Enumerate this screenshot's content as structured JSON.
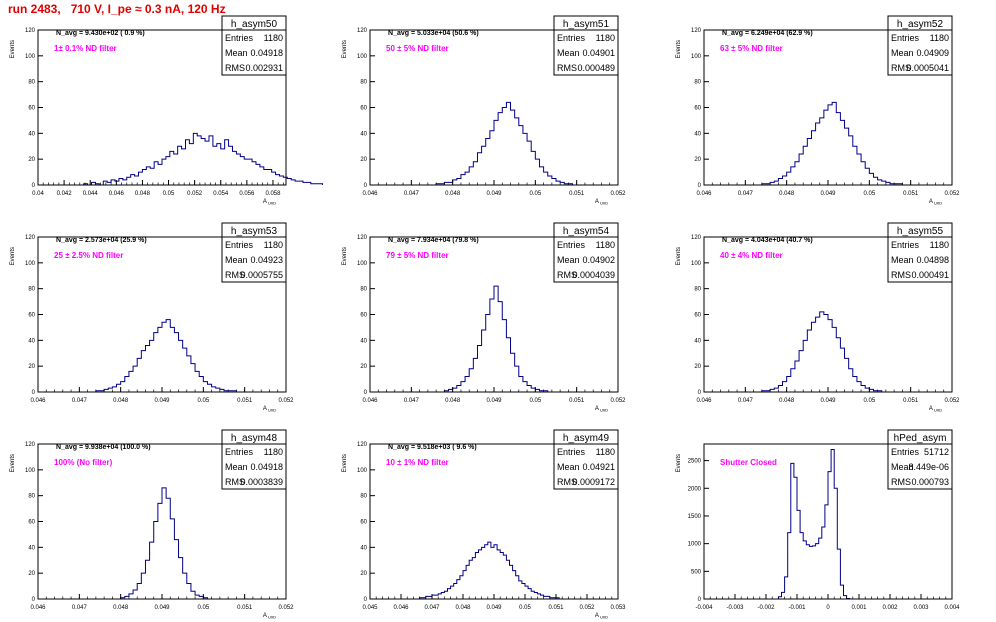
{
  "page_title": "run 2483,   710 V, I_pe ≈ 0.3 nA, 120 Hz",
  "colors": {
    "title": "#e00000",
    "hist": "#00008b",
    "filter": "#ff00ff",
    "frame": "#000000"
  },
  "chart_data": [
    {
      "type": "histogram",
      "name": "h_asym50",
      "title": "h_asym50",
      "navg": "N_avg = 9.430e+02 ( 0.9 %)",
      "filter_label": "1± 0.1% ND filter",
      "stats": [
        [
          "Entries",
          "1180"
        ],
        [
          "Mean",
          "0.04918"
        ],
        [
          "RMS",
          "0.002931"
        ]
      ],
      "ylabel": "Events",
      "xlabel": "A",
      "xlim": [
        0.04,
        0.059
      ],
      "ylim": [
        0,
        120
      ],
      "xticks": [
        0.04,
        0.042,
        0.044,
        0.046,
        0.048,
        0.05,
        0.052,
        0.054,
        0.056,
        0.058
      ],
      "xticklabels": [
        "0.04",
        "0.042",
        "0.044",
        "0.046",
        "0.048",
        "0.05",
        "0.052",
        "0.054",
        "0.056",
        "0.058"
      ],
      "yticks": [
        0,
        20,
        40,
        60,
        80,
        100,
        120
      ],
      "bins": {
        "start": 0.0435,
        "width": 0.0003,
        "counts": [
          1,
          0,
          2,
          1,
          0,
          3,
          2,
          4,
          3,
          5,
          4,
          6,
          8,
          7,
          10,
          12,
          14,
          13,
          18,
          16,
          20,
          22,
          26,
          24,
          30,
          28,
          35,
          32,
          40,
          38,
          36,
          34,
          38,
          30,
          32,
          28,
          35,
          30,
          26,
          24,
          22,
          20,
          20,
          18,
          16,
          14,
          12,
          12,
          10,
          8,
          7,
          6,
          5,
          4,
          3,
          3,
          2,
          2,
          1,
          1,
          1
        ]
      }
    },
    {
      "type": "histogram",
      "name": "h_asym51",
      "title": "h_asym51",
      "navg": "N_avg = 5.033e+04 (50.6 %)",
      "filter_label": "50 ± 5% ND filter",
      "stats": [
        [
          "Entries",
          "1180"
        ],
        [
          "Mean",
          "0.04901"
        ],
        [
          "RMS",
          "0.000489"
        ]
      ],
      "ylabel": "Events",
      "xlabel": "A",
      "xlim": [
        0.046,
        0.052
      ],
      "ylim": [
        0,
        120
      ],
      "xticks": [
        0.046,
        0.047,
        0.048,
        0.049,
        0.05,
        0.051,
        0.052
      ],
      "xticklabels": [
        "0.046",
        "0.047",
        "0.048",
        "0.049",
        "0.05",
        "0.051",
        "0.052"
      ],
      "yticks": [
        0,
        20,
        40,
        60,
        80,
        100,
        120
      ],
      "bins": {
        "start": 0.0476,
        "width": 0.0001,
        "counts": [
          1,
          1,
          2,
          2,
          4,
          5,
          8,
          10,
          14,
          18,
          25,
          30,
          36,
          42,
          50,
          56,
          60,
          64,
          58,
          52,
          46,
          40,
          34,
          26,
          20,
          14,
          10,
          7,
          5,
          3,
          2,
          1,
          1
        ]
      }
    },
    {
      "type": "histogram",
      "name": "h_asym52",
      "title": "h_asym52",
      "navg": "N_avg = 6.249e+04 (62.9 %)",
      "filter_label": "63 ± 5% ND filter",
      "stats": [
        [
          "Entries",
          "1180"
        ],
        [
          "Mean",
          "0.04909"
        ],
        [
          "RMS",
          "0.0005041"
        ]
      ],
      "ylabel": "Events",
      "xlabel": "A",
      "xlim": [
        0.046,
        0.052
      ],
      "ylim": [
        0,
        120
      ],
      "xticks": [
        0.046,
        0.047,
        0.048,
        0.049,
        0.05,
        0.051,
        0.052
      ],
      "xticklabels": [
        "0.046",
        "0.047",
        "0.048",
        "0.049",
        "0.05",
        "0.051",
        "0.052"
      ],
      "yticks": [
        0,
        20,
        40,
        60,
        80,
        100,
        120
      ],
      "bins": {
        "start": 0.0474,
        "width": 0.0001,
        "counts": [
          1,
          1,
          2,
          3,
          5,
          7,
          10,
          14,
          18,
          24,
          30,
          36,
          42,
          48,
          52,
          58,
          62,
          64,
          56,
          50,
          44,
          38,
          30,
          24,
          18,
          13,
          9,
          6,
          4,
          3,
          2,
          1,
          1,
          1
        ]
      }
    },
    {
      "type": "histogram",
      "name": "h_asym53",
      "title": "h_asym53",
      "navg": "N_avg = 2.573e+04 (25.9 %)",
      "filter_label": "25 ± 2.5% ND filter",
      "stats": [
        [
          "Entries",
          "1180"
        ],
        [
          "Mean",
          "0.04923"
        ],
        [
          "RMS",
          "0.0005755"
        ]
      ],
      "ylabel": "Events",
      "xlabel": "A",
      "xlim": [
        0.046,
        0.052
      ],
      "ylim": [
        0,
        120
      ],
      "xticks": [
        0.046,
        0.047,
        0.048,
        0.049,
        0.05,
        0.051,
        0.052
      ],
      "xticklabels": [
        "0.046",
        "0.047",
        "0.048",
        "0.049",
        "0.05",
        "0.051",
        "0.052"
      ],
      "yticks": [
        0,
        20,
        40,
        60,
        80,
        100,
        120
      ],
      "bins": {
        "start": 0.0474,
        "width": 0.0001,
        "counts": [
          1,
          1,
          2,
          3,
          4,
          6,
          8,
          12,
          16,
          20,
          26,
          32,
          36,
          40,
          46,
          50,
          54,
          56,
          50,
          46,
          40,
          34,
          28,
          22,
          16,
          12,
          8,
          6,
          4,
          3,
          2,
          1,
          1,
          1
        ]
      }
    },
    {
      "type": "histogram",
      "name": "h_asym54",
      "title": "h_asym54",
      "navg": "N_avg = 7.934e+04 (79.8 %)",
      "filter_label": "79 ± 5% ND filter",
      "stats": [
        [
          "Entries",
          "1180"
        ],
        [
          "Mean",
          "0.04902"
        ],
        [
          "RMS",
          "0.0004039"
        ]
      ],
      "ylabel": "Events",
      "xlabel": "A",
      "xlim": [
        0.046,
        0.052
      ],
      "ylim": [
        0,
        120
      ],
      "xticks": [
        0.046,
        0.047,
        0.048,
        0.049,
        0.05,
        0.051,
        0.052
      ],
      "xticklabels": [
        "0.046",
        "0.047",
        "0.048",
        "0.049",
        "0.05",
        "0.051",
        "0.052"
      ],
      "yticks": [
        0,
        20,
        40,
        60,
        80,
        100,
        120
      ],
      "bins": {
        "start": 0.0478,
        "width": 0.0001,
        "counts": [
          1,
          2,
          3,
          5,
          8,
          12,
          18,
          26,
          36,
          48,
          60,
          72,
          82,
          70,
          56,
          42,
          30,
          20,
          12,
          8,
          5,
          3,
          2,
          1,
          1
        ]
      }
    },
    {
      "type": "histogram",
      "name": "h_asym55",
      "title": "h_asym55",
      "navg": "N_avg = 4.043e+04 (40.7 %)",
      "filter_label": "40 ± 4% ND filter",
      "stats": [
        [
          "Entries",
          "1180"
        ],
        [
          "Mean",
          "0.04898"
        ],
        [
          "RMS",
          "0.000491"
        ]
      ],
      "ylabel": "Events",
      "xlabel": "A",
      "xlim": [
        0.046,
        0.052
      ],
      "ylim": [
        0,
        120
      ],
      "xticks": [
        0.046,
        0.047,
        0.048,
        0.049,
        0.05,
        0.051,
        0.052
      ],
      "xticklabels": [
        "0.046",
        "0.047",
        "0.048",
        "0.049",
        "0.05",
        "0.051",
        "0.052"
      ],
      "yticks": [
        0,
        20,
        40,
        60,
        80,
        100,
        120
      ],
      "bins": {
        "start": 0.0474,
        "width": 0.0001,
        "counts": [
          1,
          1,
          2,
          3,
          5,
          8,
          12,
          18,
          24,
          32,
          40,
          48,
          54,
          58,
          62,
          60,
          56,
          50,
          42,
          34,
          26,
          18,
          12,
          8,
          5,
          3,
          2,
          1,
          1
        ]
      }
    },
    {
      "type": "histogram",
      "name": "h_asym48",
      "title": "h_asym48",
      "navg": "N_avg = 9.938e+04 (100.0 %)",
      "filter_label": "100% (No filter)",
      "stats": [
        [
          "Entries",
          "1180"
        ],
        [
          "Mean",
          "0.04918"
        ],
        [
          "RMS",
          "0.0003839"
        ]
      ],
      "ylabel": "Events",
      "xlabel": "A",
      "xlim": [
        0.046,
        0.052
      ],
      "ylim": [
        0,
        120
      ],
      "xticks": [
        0.046,
        0.047,
        0.048,
        0.049,
        0.05,
        0.051,
        0.052
      ],
      "xticklabels": [
        "0.046",
        "0.047",
        "0.048",
        "0.049",
        "0.05",
        "0.051",
        "0.052"
      ],
      "yticks": [
        0,
        20,
        40,
        60,
        80,
        100,
        120
      ],
      "bins": {
        "start": 0.048,
        "width": 0.0001,
        "counts": [
          1,
          2,
          4,
          7,
          12,
          20,
          30,
          44,
          60,
          74,
          86,
          78,
          62,
          46,
          32,
          20,
          12,
          6,
          3,
          2,
          1
        ]
      }
    },
    {
      "type": "histogram",
      "name": "h_asym49",
      "title": "h_asym49",
      "navg": "N_avg = 9.518e+03 ( 9.6 %)",
      "filter_label": "10 ± 1% ND filter",
      "stats": [
        [
          "Entries",
          "1180"
        ],
        [
          "Mean",
          "0.04921"
        ],
        [
          "RMS",
          "0.0009172"
        ]
      ],
      "ylabel": "Events",
      "xlabel": "A",
      "xlim": [
        0.045,
        0.053
      ],
      "ylim": [
        0,
        120
      ],
      "xticks": [
        0.045,
        0.046,
        0.047,
        0.048,
        0.049,
        0.05,
        0.051,
        0.052,
        0.053
      ],
      "xticklabels": [
        "0.045",
        "0.046",
        "0.047",
        "0.048",
        "0.049",
        "0.05",
        "0.051",
        "0.052",
        "0.053"
      ],
      "yticks": [
        0,
        20,
        40,
        60,
        80,
        100,
        120
      ],
      "bins": {
        "start": 0.0466,
        "width": 0.0001,
        "counts": [
          1,
          1,
          2,
          2,
          3,
          3,
          4,
          5,
          6,
          8,
          10,
          12,
          15,
          18,
          22,
          26,
          30,
          32,
          36,
          38,
          40,
          42,
          44,
          40,
          42,
          38,
          36,
          34,
          30,
          26,
          22,
          18,
          14,
          12,
          10,
          8,
          6,
          5,
          4,
          3,
          2,
          2,
          1,
          1,
          1
        ]
      }
    },
    {
      "type": "histogram",
      "name": "hPed_asym",
      "title": "hPed_asym",
      "navg": "",
      "filter_label": "Shutter Closed",
      "stats": [
        [
          "Entries",
          "51712"
        ],
        [
          "Mean",
          "8.449e-06"
        ],
        [
          "RMS",
          "0.000793"
        ]
      ],
      "ylabel": "Events",
      "xlabel": "",
      "xlim": [
        -0.004,
        0.004
      ],
      "ylim": [
        0,
        2800
      ],
      "xticks": [
        -0.004,
        -0.003,
        -0.002,
        -0.001,
        0,
        0.001,
        0.002,
        0.003,
        0.004
      ],
      "xticklabels": [
        "-0.004",
        "-0.003",
        "-0.002",
        "-0.001",
        "0",
        "0.001",
        "0.002",
        "0.003",
        "0.004"
      ],
      "yticks": [
        0,
        500,
        1000,
        1500,
        2000,
        2500
      ],
      "bins": {
        "start": -0.0016,
        "width": 0.0001,
        "counts": [
          40,
          120,
          400,
          1200,
          2450,
          2200,
          1600,
          1200,
          1050,
          980,
          950,
          960,
          1000,
          1100,
          1300,
          1700,
          2300,
          2700,
          2000,
          900,
          250,
          60,
          10
        ]
      }
    }
  ]
}
